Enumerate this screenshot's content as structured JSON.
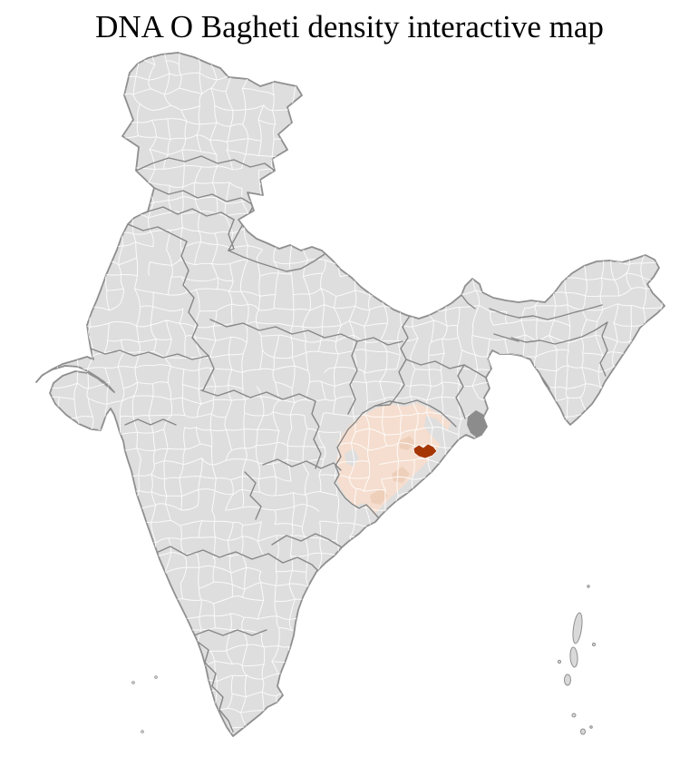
{
  "title": "DNA O Bagheti density interactive map",
  "map": {
    "colors": {
      "background": "#ffffff",
      "land": "#dedede",
      "district_border": "#ffffff",
      "state_border": "#878787",
      "coast_outline": "#8f8f8f",
      "highlight": "#f5decf",
      "highlight_strong": "#eecfba",
      "selected_district": "#a63603",
      "selected_district_border": "#ffffff",
      "estuary_dark": "#8c8c8c",
      "island": "#d9d9d9"
    }
  }
}
